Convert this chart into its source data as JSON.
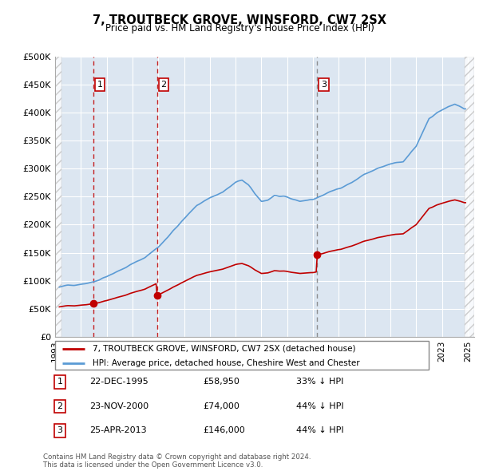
{
  "title": "7, TROUTBECK GROVE, WINSFORD, CW7 2SX",
  "subtitle": "Price paid vs. HM Land Registry's House Price Index (HPI)",
  "ylim": [
    0,
    500000
  ],
  "xlim_start": 1993.0,
  "xlim_end": 2025.5,
  "sale_dates": [
    1995.96,
    2000.9,
    2013.32
  ],
  "sale_prices": [
    58950,
    74000,
    146000
  ],
  "sale_labels": [
    "1",
    "2",
    "3"
  ],
  "sale_vline_colors": [
    "#c00000",
    "#c00000",
    "#7f7f7f"
  ],
  "sale_vline_styles": [
    "--",
    "--",
    "--"
  ],
  "hpi_color": "#5b9bd5",
  "property_color": "#c00000",
  "dot_color": "#c00000",
  "bg_color": "#dce6f1",
  "grid_color": "#ffffff",
  "legend_label_property": "7, TROUTBECK GROVE, WINSFORD, CW7 2SX (detached house)",
  "legend_label_hpi": "HPI: Average price, detached house, Cheshire West and Chester",
  "table_rows": [
    [
      "1",
      "22-DEC-1995",
      "£58,950",
      "33% ↓ HPI"
    ],
    [
      "2",
      "23-NOV-2000",
      "£74,000",
      "44% ↓ HPI"
    ],
    [
      "3",
      "25-APR-2013",
      "£146,000",
      "44% ↓ HPI"
    ]
  ],
  "copyright_text": "Contains HM Land Registry data © Crown copyright and database right 2024.\nThis data is licensed under the Open Government Licence v3.0.",
  "hatch_left_end": 1993.5,
  "hatch_right_start": 2024.75
}
